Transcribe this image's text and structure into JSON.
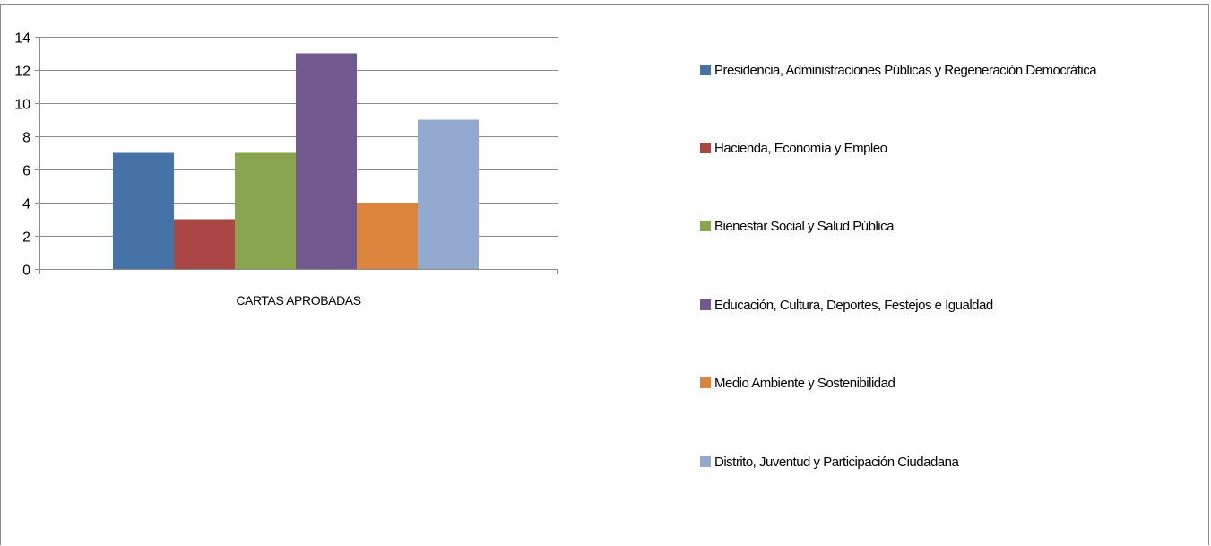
{
  "chart_data": {
    "type": "bar",
    "categories": [
      "CARTAS APROBADAS"
    ],
    "series": [
      {
        "name": "Presidencia, Administraciones Públicas y Regeneración Democrática",
        "values": [
          7
        ],
        "color": "#4572a7"
      },
      {
        "name": "Hacienda, Economía y Empleo",
        "values": [
          3
        ],
        "color": "#aa4643"
      },
      {
        "name": "Bienestar Social y Salud Pública",
        "values": [
          7
        ],
        "color": "#89a54e"
      },
      {
        "name": "Educación, Cultura, Deportes, Festejos e Igualdad",
        "values": [
          13
        ],
        "color": "#71588f"
      },
      {
        "name": "Medio Ambiente y Sostenibilidad",
        "values": [
          4
        ],
        "color": "#db843d"
      },
      {
        "name": "Distrito, Juventud y Participación Ciudadana",
        "values": [
          9
        ],
        "color": "#93a9cf"
      }
    ],
    "ylim": [
      0,
      14
    ],
    "yticks": [
      0,
      2,
      4,
      6,
      8,
      10,
      12,
      14
    ],
    "grid": true,
    "legend_position": "right",
    "title": "",
    "xlabel": "",
    "ylabel": ""
  }
}
